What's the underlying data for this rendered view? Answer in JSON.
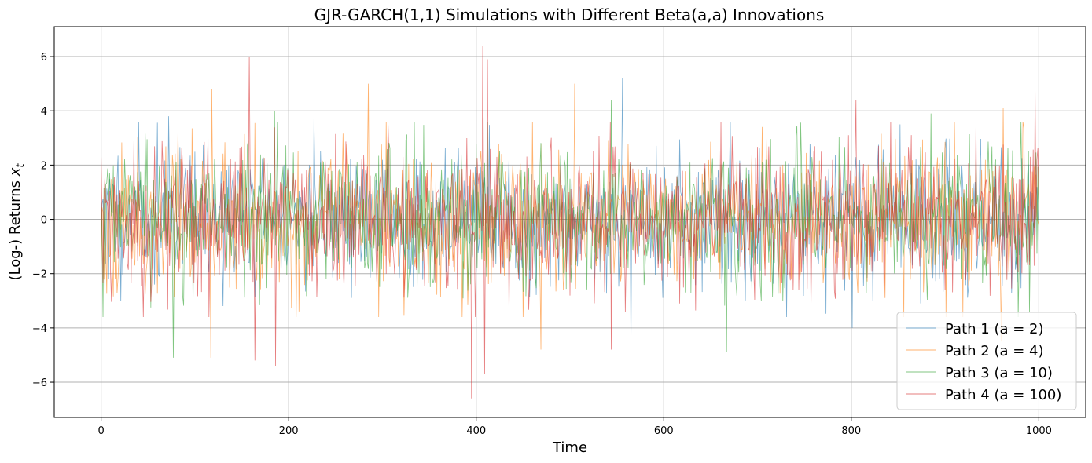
{
  "chart_data": {
    "type": "line",
    "title": "GJR-GARCH(1,1) Simulations with Different Beta(a,a) Innovations",
    "xlabel": "Time",
    "ylabel_prefix": "(Log-) Returns ",
    "ylabel_var": "x",
    "ylabel_sub": "t",
    "xlim": [
      -50,
      1050
    ],
    "ylim": [
      -7.3,
      7.1
    ],
    "x_ticks": [
      0,
      200,
      400,
      600,
      800,
      1000
    ],
    "y_ticks": [
      -6,
      -4,
      -2,
      0,
      2,
      4,
      6
    ],
    "x_tick_labels": [
      "0",
      "200",
      "400",
      "600",
      "800",
      "1000"
    ],
    "y_tick_labels": [
      "−6",
      "−4",
      "−2",
      "0",
      "2",
      "4",
      "6"
    ],
    "grid": true,
    "legend_position": "lower-right",
    "n_points": 1001,
    "series": [
      {
        "name": "Path 1 (a = 2)",
        "color": "#1f77b4",
        "scale": 1.25,
        "seed": 11,
        "peaks": [
          [
            72,
            3.8
          ],
          [
            227,
            3.7
          ],
          [
            556,
            5.2
          ],
          [
            565,
            -4.6
          ],
          [
            801,
            -4.0
          ],
          [
            852,
            3.5
          ]
        ]
      },
      {
        "name": "Path 2 (a = 4)",
        "color": "#ff7f0e",
        "scale": 1.3,
        "seed": 23,
        "peaks": [
          [
            117,
            -5.1
          ],
          [
            118,
            4.8
          ],
          [
            285,
            5.0
          ],
          [
            469,
            5.3
          ],
          [
            469,
            -4.8
          ],
          [
            505,
            5.0
          ],
          [
            960,
            -4.5
          ],
          [
            962,
            4.1
          ]
        ]
      },
      {
        "name": "Path 3 (a = 10)",
        "color": "#2ca02c",
        "scale": 1.3,
        "seed": 37,
        "peaks": [
          [
            2,
            4.3
          ],
          [
            2,
            -3.6
          ],
          [
            77,
            -5.1
          ],
          [
            185,
            4.0
          ],
          [
            544,
            4.4
          ],
          [
            667,
            -4.9
          ],
          [
            885,
            3.9
          ]
        ]
      },
      {
        "name": "Path 4 (a = 100)",
        "color": "#d62728",
        "scale": 1.35,
        "seed": 53,
        "peaks": [
          [
            158,
            6.0
          ],
          [
            164,
            -5.2
          ],
          [
            186,
            -5.4
          ],
          [
            395,
            -6.6
          ],
          [
            407,
            6.4
          ],
          [
            409,
            -5.7
          ],
          [
            412,
            5.9
          ],
          [
            544,
            -4.8
          ],
          [
            805,
            4.4
          ],
          [
            996,
            4.8
          ]
        ]
      }
    ]
  }
}
